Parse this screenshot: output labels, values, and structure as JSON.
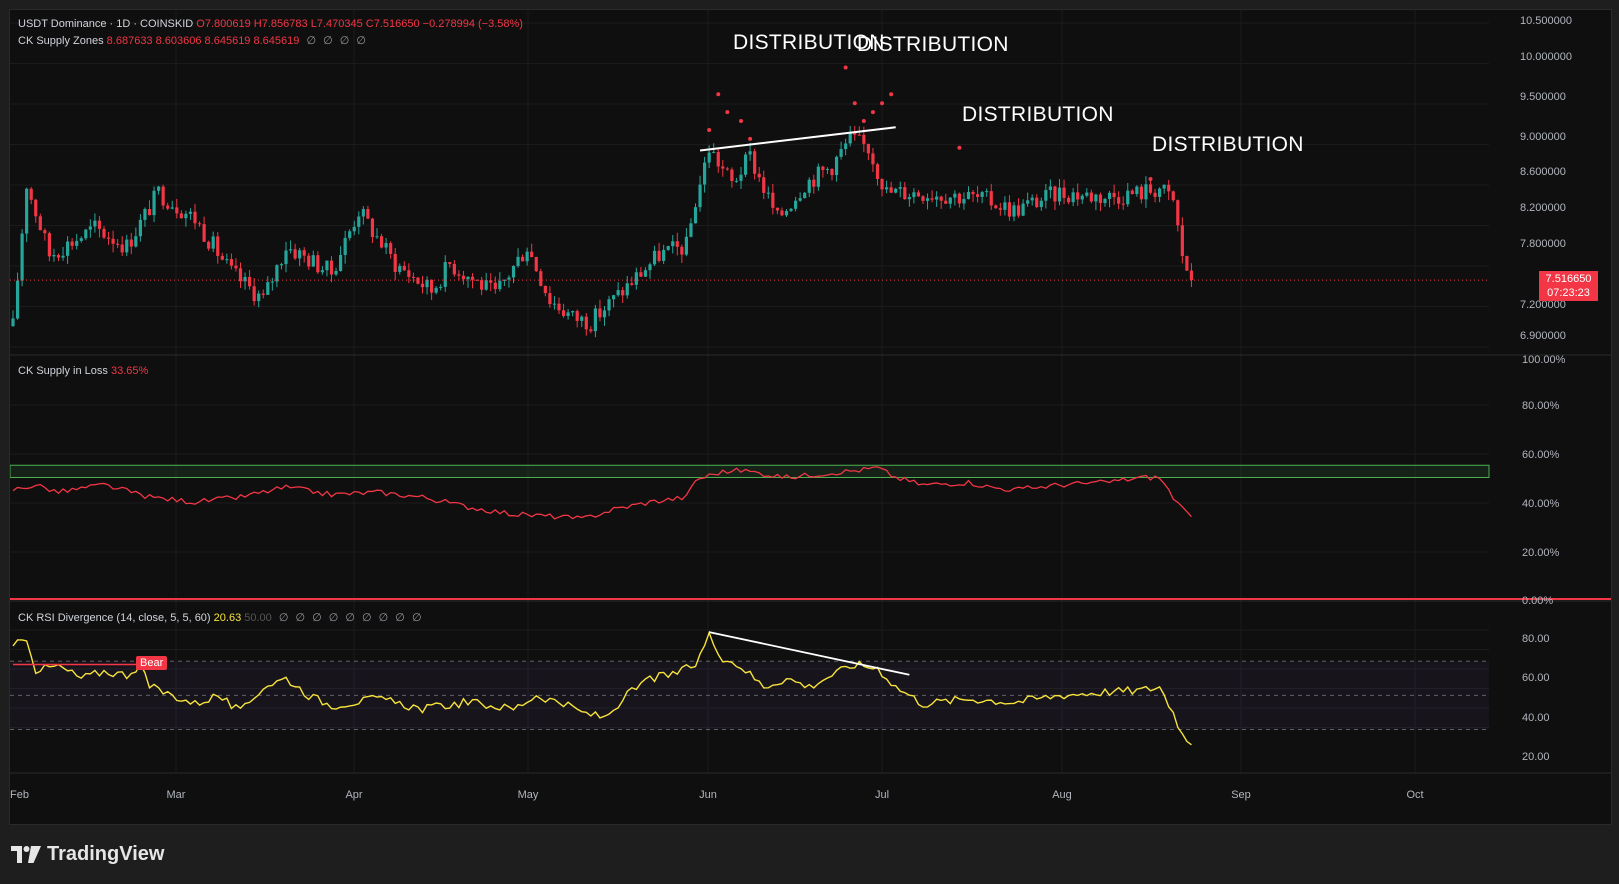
{
  "header": {
    "symbol": "USDT Dominance · 1D · COINSKID",
    "ohlc": {
      "o": "O7.800619",
      "h": "H7.856783",
      "l": "L7.470345",
      "c": "C7.516650",
      "chg": "−0.278994 (−3.58%)"
    },
    "indicator": "CK Supply Zones",
    "indicator_values": "8.687633  8.603606  8.645619  8.645619"
  },
  "loss_panel": {
    "title": "CK Supply in Loss",
    "value": "33.65%"
  },
  "rsi_panel": {
    "title": "CK RSI Divergence (14, close, 5, 5, 60)",
    "value": "20.63",
    "dim_value": "50.00",
    "bear_label": "Bear"
  },
  "price_tag": {
    "price": "7.516650",
    "countdown": "07:23:23"
  },
  "annotations": [
    "DISTRIBUTION",
    "DISTRIBUTION",
    "DISTRIBUTION",
    "DISTRIBUTION"
  ],
  "logo_text": "TradingView",
  "colors": {
    "up": "#26a69a",
    "down": "#f23645",
    "rsi": "#f7e33c",
    "loss": "#f23645",
    "zone": "#4caf50",
    "background": "#0f0f0f"
  },
  "chart_data": [
    {
      "type": "candlestick",
      "title": "USDT Dominance",
      "x_axis": [
        "Feb",
        "Mar",
        "Apr",
        "May",
        "Jun",
        "Jul",
        "Aug",
        "Sep",
        "Oct"
      ],
      "y_ticks": [
        "10.500000",
        "10.000000",
        "9.500000",
        "9.000000",
        "8.600000",
        "8.200000",
        "7.800000",
        "7.200000",
        "6.900000"
      ],
      "ylim": [
        6.8,
        10.5
      ],
      "last_close": 7.51665,
      "anchors": [
        [
          0,
          7.0
        ],
        [
          3,
          8.6
        ],
        [
          8,
          7.8
        ],
        [
          18,
          8.1
        ],
        [
          25,
          7.9
        ],
        [
          32,
          8.5
        ],
        [
          40,
          8.2
        ],
        [
          48,
          7.6
        ],
        [
          55,
          7.3
        ],
        [
          60,
          7.9
        ],
        [
          70,
          7.6
        ],
        [
          76,
          8.3
        ],
        [
          84,
          7.7
        ],
        [
          92,
          7.4
        ],
        [
          96,
          7.7
        ],
        [
          102,
          7.5
        ],
        [
          106,
          7.35
        ],
        [
          113,
          7.9
        ],
        [
          118,
          7.3
        ],
        [
          123,
          7.1
        ],
        [
          127,
          7.05
        ],
        [
          136,
          7.5
        ],
        [
          142,
          7.8
        ],
        [
          148,
          7.9
        ],
        [
          150,
          8.4
        ],
        [
          153,
          9.0
        ],
        [
          158,
          8.6
        ],
        [
          162,
          8.9
        ],
        [
          168,
          8.2
        ],
        [
          174,
          8.6
        ],
        [
          180,
          8.8
        ],
        [
          184,
          9.1
        ],
        [
          188,
          9.0
        ],
        [
          192,
          8.5
        ],
        [
          200,
          8.5
        ],
        [
          210,
          8.45
        ],
        [
          215,
          8.4
        ],
        [
          220,
          8.3
        ],
        [
          230,
          8.5
        ],
        [
          240,
          8.45
        ],
        [
          248,
          8.5
        ],
        [
          252,
          8.55
        ],
        [
          255,
          8.4
        ],
        [
          257,
          7.8
        ],
        [
          259,
          7.5
        ]
      ],
      "supply_dots": [
        [
          153,
          9.2
        ],
        [
          155,
          9.6
        ],
        [
          157,
          9.4
        ],
        [
          160,
          9.3
        ],
        [
          162,
          9.1
        ],
        [
          183,
          9.9
        ],
        [
          185,
          9.5
        ],
        [
          187,
          9.3
        ],
        [
          189,
          9.4
        ],
        [
          191,
          9.5
        ],
        [
          193,
          9.6
        ],
        [
          208,
          9.0
        ],
        [
          250,
          8.65
        ]
      ],
      "trendline": [
        [
          151,
          8.97
        ],
        [
          194,
          9.23
        ]
      ]
    },
    {
      "type": "line",
      "title": "CK Supply in Loss",
      "y_ticks": [
        "100.00%",
        "80.00%",
        "60.00%",
        "40.00%",
        "20.00%",
        "0.00%"
      ],
      "ylim": [
        0,
        100
      ],
      "zone": [
        50,
        55
      ],
      "anchors": [
        [
          0,
          45
        ],
        [
          5,
          47
        ],
        [
          10,
          44
        ],
        [
          20,
          47
        ],
        [
          30,
          42
        ],
        [
          40,
          40
        ],
        [
          50,
          42
        ],
        [
          60,
          46
        ],
        [
          70,
          43
        ],
        [
          80,
          44
        ],
        [
          90,
          42
        ],
        [
          100,
          38
        ],
        [
          110,
          35
        ],
        [
          120,
          34
        ],
        [
          125,
          33
        ],
        [
          132,
          37
        ],
        [
          140,
          40
        ],
        [
          148,
          42
        ],
        [
          150,
          49
        ],
        [
          155,
          52
        ],
        [
          160,
          53
        ],
        [
          170,
          50
        ],
        [
          180,
          52
        ],
        [
          186,
          53
        ],
        [
          190,
          54
        ],
        [
          194,
          50
        ],
        [
          200,
          47
        ],
        [
          210,
          48
        ],
        [
          215,
          46
        ],
        [
          220,
          45
        ],
        [
          230,
          47
        ],
        [
          240,
          48
        ],
        [
          248,
          50
        ],
        [
          252,
          50
        ],
        [
          255,
          42
        ],
        [
          257,
          37
        ],
        [
          259,
          34
        ]
      ]
    },
    {
      "type": "line",
      "title": "CK RSI Divergence",
      "y_ticks": [
        "80.00",
        "60.00",
        "40.00",
        "20.00"
      ],
      "ylim": [
        15,
        90
      ],
      "levels": [
        70,
        50,
        30
      ],
      "anchors": [
        [
          0,
          78
        ],
        [
          3,
          84
        ],
        [
          5,
          65
        ],
        [
          10,
          67
        ],
        [
          15,
          60
        ],
        [
          20,
          64
        ],
        [
          25,
          62
        ],
        [
          28,
          68
        ],
        [
          30,
          55
        ],
        [
          35,
          50
        ],
        [
          40,
          45
        ],
        [
          45,
          50
        ],
        [
          50,
          40
        ],
        [
          55,
          55
        ],
        [
          60,
          60
        ],
        [
          65,
          50
        ],
        [
          70,
          44
        ],
        [
          80,
          48
        ],
        [
          90,
          42
        ],
        [
          100,
          46
        ],
        [
          110,
          42
        ],
        [
          115,
          50
        ],
        [
          120,
          46
        ],
        [
          125,
          40
        ],
        [
          130,
          37
        ],
        [
          135,
          50
        ],
        [
          140,
          60
        ],
        [
          145,
          62
        ],
        [
          150,
          68
        ],
        [
          153,
          85
        ],
        [
          156,
          72
        ],
        [
          160,
          67
        ],
        [
          165,
          55
        ],
        [
          170,
          60
        ],
        [
          175,
          55
        ],
        [
          180,
          62
        ],
        [
          185,
          68
        ],
        [
          190,
          66
        ],
        [
          194,
          55
        ],
        [
          200,
          45
        ],
        [
          210,
          48
        ],
        [
          220,
          46
        ],
        [
          230,
          50
        ],
        [
          240,
          52
        ],
        [
          248,
          53
        ],
        [
          252,
          55
        ],
        [
          255,
          40
        ],
        [
          257,
          27
        ],
        [
          259,
          21
        ]
      ],
      "bear_divergence": [
        [
          153,
          87
        ],
        [
          197,
          62
        ]
      ]
    }
  ]
}
